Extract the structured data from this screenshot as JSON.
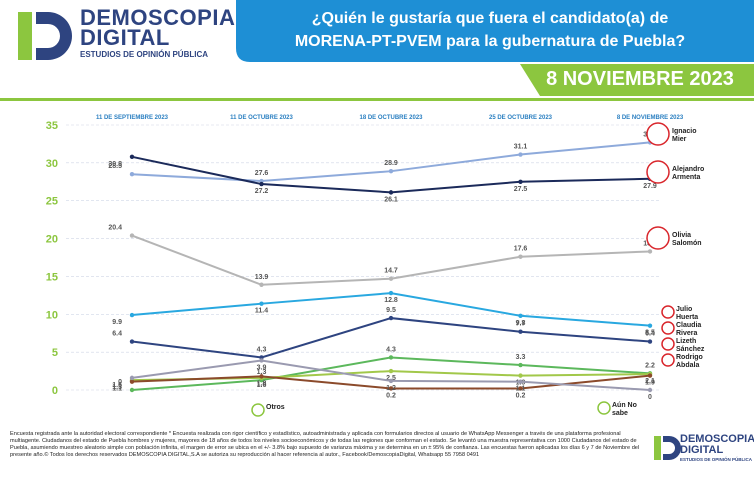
{
  "header": {
    "brand": "DEMOSCOPIA DIGITAL",
    "brand_subtitle": "ESTUDIOS DE OPINIÓN PÚBLICA"
  },
  "chart_data": {
    "type": "line",
    "title_lines": [
      "¿Quién le gustaría que fuera el candidato(a) de",
      "MORENA-PT-PVEM para la gubernatura de Puebla?"
    ],
    "subtitle": "8 NOVIEMBRE 2023",
    "categories": [
      "11 DE SEPTIEMBRE 2023",
      "11 DE OCTUBRE 2023",
      "18 DE OCTUBRE 2023",
      "25 DE OCTUBRE 2023",
      "8 DE NOVIEMBRE 2023"
    ],
    "ylim": [
      0,
      35
    ],
    "yticks": [
      0,
      5,
      10,
      15,
      20,
      25,
      30,
      35
    ],
    "grid": true,
    "series": [
      {
        "name": "Ignacio Mier",
        "color": "#8eaadb",
        "values": [
          28.5,
          27.6,
          28.9,
          31.1,
          32.7
        ]
      },
      {
        "name": "Alejandro Armenta",
        "color": "#1b2a5a",
        "values": [
          30.8,
          27.2,
          26.1,
          27.5,
          27.9
        ]
      },
      {
        "name": "Olivia Salomón",
        "color": "#b5b5b5",
        "values": [
          20.4,
          13.9,
          14.7,
          17.6,
          18.3
        ]
      },
      {
        "name": "Julio Huerta",
        "color": "#29a8e0",
        "values": [
          9.9,
          11.4,
          12.8,
          9.8,
          8.5
        ]
      },
      {
        "name": "Claudia Rivera",
        "color": "#2e4480",
        "values": [
          6.4,
          4.3,
          9.5,
          7.7,
          6.4
        ]
      },
      {
        "name": "Lizeth Sánchez",
        "color": "#5cb85c",
        "values": [
          0,
          1.3,
          4.3,
          3.3,
          2.2
        ]
      },
      {
        "name": "Rodrigo Abdala",
        "color": "#a2c84a",
        "values": [
          1.3,
          1.6,
          2.5,
          1.9,
          2.1
        ]
      },
      {
        "name": "Otros",
        "color": "#8b4a2b",
        "values": [
          1.1,
          1.8,
          0.2,
          0.2,
          1.9
        ]
      },
      {
        "name": "Aún No sabe",
        "color": "#9a9ab0",
        "values": [
          1.6,
          3.9,
          1.2,
          1.1,
          0
        ]
      }
    ]
  },
  "footer": {
    "note": "Encuesta registrada ante la autoridad electoral correspondiente * Encuesta realizada con rigor científico y estadístico, autoadministrada y aplicada con formularios directos al usuario de WhatsApp Messenger a través de una plataforma profesional multiagente. Ciudadanos del estado de Puebla hombres y mujeres, mayores de 18 años de todos los niveles socioeconómicos y de todas las regiones que conforman el estado. Se levantó una muestra representativa con 1000 Ciudadanos del estado de Puebla, asumiendo muestreo aleatorio simple con población infinita, el margen de error se ubica en el +/- 3.8% bajo supuesto de varianza máxima y se determina en un ± 95% de confianza. Las encuestas fueron aplicadas los días 6 y 7 de Noviembre del presente año.© Todos los derechos reservados DEMOSCOPIA DIGITAL,S.A se autoriza su reproducción al hacer referencia al autor., Facebook/DemoscopiaDigital, Whatsapp 55 7958 0491",
    "brand": "DEMOSCOPIA DIGITAL",
    "brand_subtitle": "ESTUDIOS DE OPINIÓN PÚBLICA"
  }
}
